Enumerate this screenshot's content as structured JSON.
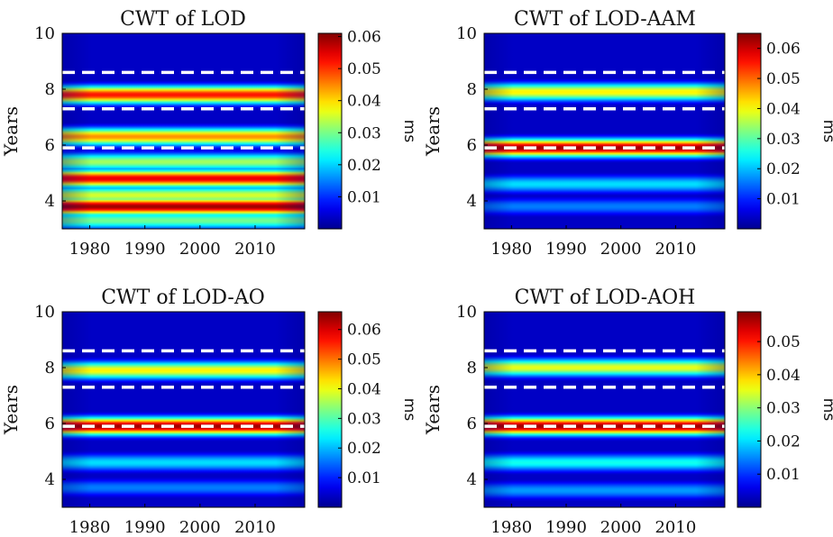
{
  "chart_data": [
    {
      "type": "heatmap",
      "title": "CWT of LOD",
      "ylabel": "Years",
      "xlabel": "",
      "xlim": [
        1975,
        2019
      ],
      "ylim": [
        3,
        10
      ],
      "xticks": [
        "1980",
        "1990",
        "2000",
        "2010"
      ],
      "yticks": [
        "4",
        "6",
        "8",
        "10"
      ],
      "colorbar": {
        "label": "ms",
        "range": [
          0,
          0.061
        ],
        "ticks": [
          "0.01",
          "0.02",
          "0.03",
          "0.04",
          "0.05",
          "0.06"
        ]
      },
      "colormap": "jet",
      "dashed_lines_y": [
        8.6,
        7.3,
        5.9
      ],
      "bands": [
        {
          "period": 9.3,
          "intensity": 0.05
        },
        {
          "period": 7.8,
          "intensity": 0.88
        },
        {
          "period": 6.3,
          "intensity": 0.75
        },
        {
          "period": 5.4,
          "intensity": 0.55
        },
        {
          "period": 4.8,
          "intensity": 0.92
        },
        {
          "period": 4.2,
          "intensity": 0.6
        },
        {
          "period": 3.8,
          "intensity": 1.0
        },
        {
          "period": 3.3,
          "intensity": 0.5
        }
      ]
    },
    {
      "type": "heatmap",
      "title": "CWT of LOD-AAM",
      "ylabel": "Years",
      "xlabel": "",
      "xlim": [
        1975,
        2019
      ],
      "ylim": [
        3,
        10
      ],
      "xticks": [
        "1980",
        "1990",
        "2000",
        "2010"
      ],
      "yticks": [
        "4",
        "6",
        "8",
        "10"
      ],
      "colorbar": {
        "label": "ms",
        "range": [
          0,
          0.065
        ],
        "ticks": [
          "0.01",
          "0.02",
          "0.03",
          "0.04",
          "0.05",
          "0.06"
        ]
      },
      "colormap": "jet",
      "dashed_lines_y": [
        8.6,
        7.3,
        5.9
      ],
      "bands": [
        {
          "period": 7.9,
          "intensity": 0.65
        },
        {
          "period": 5.9,
          "intensity": 1.0
        },
        {
          "period": 4.6,
          "intensity": 0.35
        },
        {
          "period": 3.8,
          "intensity": 0.25
        }
      ]
    },
    {
      "type": "heatmap",
      "title": "CWT of LOD-AO",
      "ylabel": "Years",
      "xlabel": "",
      "xlim": [
        1975,
        2019
      ],
      "ylim": [
        3,
        10
      ],
      "xticks": [
        "1980",
        "1990",
        "2000",
        "2010"
      ],
      "yticks": [
        "4",
        "6",
        "8",
        "10"
      ],
      "colorbar": {
        "label": "ms",
        "range": [
          0,
          0.066
        ],
        "ticks": [
          "0.01",
          "0.02",
          "0.03",
          "0.04",
          "0.05",
          "0.06"
        ]
      },
      "colormap": "jet",
      "dashed_lines_y": [
        8.6,
        7.3,
        5.9
      ],
      "bands": [
        {
          "period": 7.9,
          "intensity": 0.65
        },
        {
          "period": 5.9,
          "intensity": 1.0
        },
        {
          "period": 4.6,
          "intensity": 0.35
        },
        {
          "period": 3.7,
          "intensity": 0.25
        }
      ]
    },
    {
      "type": "heatmap",
      "title": "CWT of LOD-AOH",
      "ylabel": "Years",
      "xlabel": "",
      "xlim": [
        1975,
        2019
      ],
      "ylim": [
        3,
        10
      ],
      "xticks": [
        "1980",
        "1990",
        "2000",
        "2010"
      ],
      "yticks": [
        "4",
        "6",
        "8",
        "10"
      ],
      "colorbar": {
        "label": "ms",
        "range": [
          0,
          0.059
        ],
        "ticks": [
          "0.01",
          "0.02",
          "0.03",
          "0.04",
          "0.05"
        ]
      },
      "colormap": "jet",
      "dashed_lines_y": [
        8.6,
        7.3,
        5.9
      ],
      "bands": [
        {
          "period": 8.0,
          "intensity": 0.62
        },
        {
          "period": 5.9,
          "intensity": 1.0
        },
        {
          "period": 4.6,
          "intensity": 0.4
        },
        {
          "period": 3.6,
          "intensity": 0.28
        }
      ]
    }
  ]
}
